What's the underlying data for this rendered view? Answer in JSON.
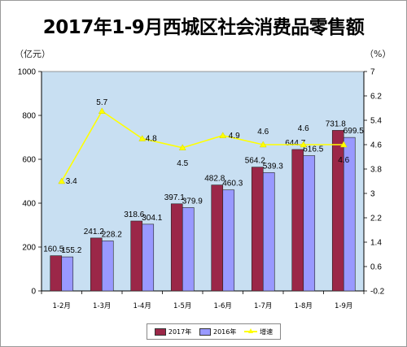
{
  "chart_data": {
    "type": "bar+line",
    "title": "2017年1-9月西城区社会消费品零售额",
    "left_unit": "（亿元）",
    "right_unit": "（%）",
    "categories": [
      "1-2月",
      "1-3月",
      "1-4月",
      "1-5月",
      "1-6月",
      "1-7月",
      "1-8月",
      "1-9月"
    ],
    "series": [
      {
        "name": "2017年",
        "type": "bar",
        "axis": "left",
        "color": "#9b2748",
        "values": [
          160.5,
          241.2,
          318.6,
          397.1,
          482.8,
          564.2,
          644.7,
          731.8
        ]
      },
      {
        "name": "2016年",
        "type": "bar",
        "axis": "left",
        "color": "#9999ff",
        "values": [
          155.2,
          228.2,
          304.1,
          379.9,
          460.3,
          539.3,
          616.5,
          699.5
        ]
      },
      {
        "name": "增速",
        "type": "line",
        "axis": "right",
        "color": "#ffff00",
        "values": [
          3.4,
          5.7,
          4.8,
          4.5,
          4.9,
          4.6,
          4.6,
          4.6
        ]
      }
    ],
    "left_axis": {
      "min": 0,
      "max": 1000,
      "ticks": [
        0,
        200,
        400,
        600,
        800,
        1000
      ]
    },
    "right_axis": {
      "min": -0.2,
      "max": 7,
      "ticks": [
        "-0.2",
        "0.6",
        "1.4",
        "2.2",
        "3",
        "3.8",
        "4.6",
        "5.4",
        "6.2",
        "7"
      ]
    },
    "plot_background": "#c8dff2",
    "legend_position": "bottom"
  }
}
